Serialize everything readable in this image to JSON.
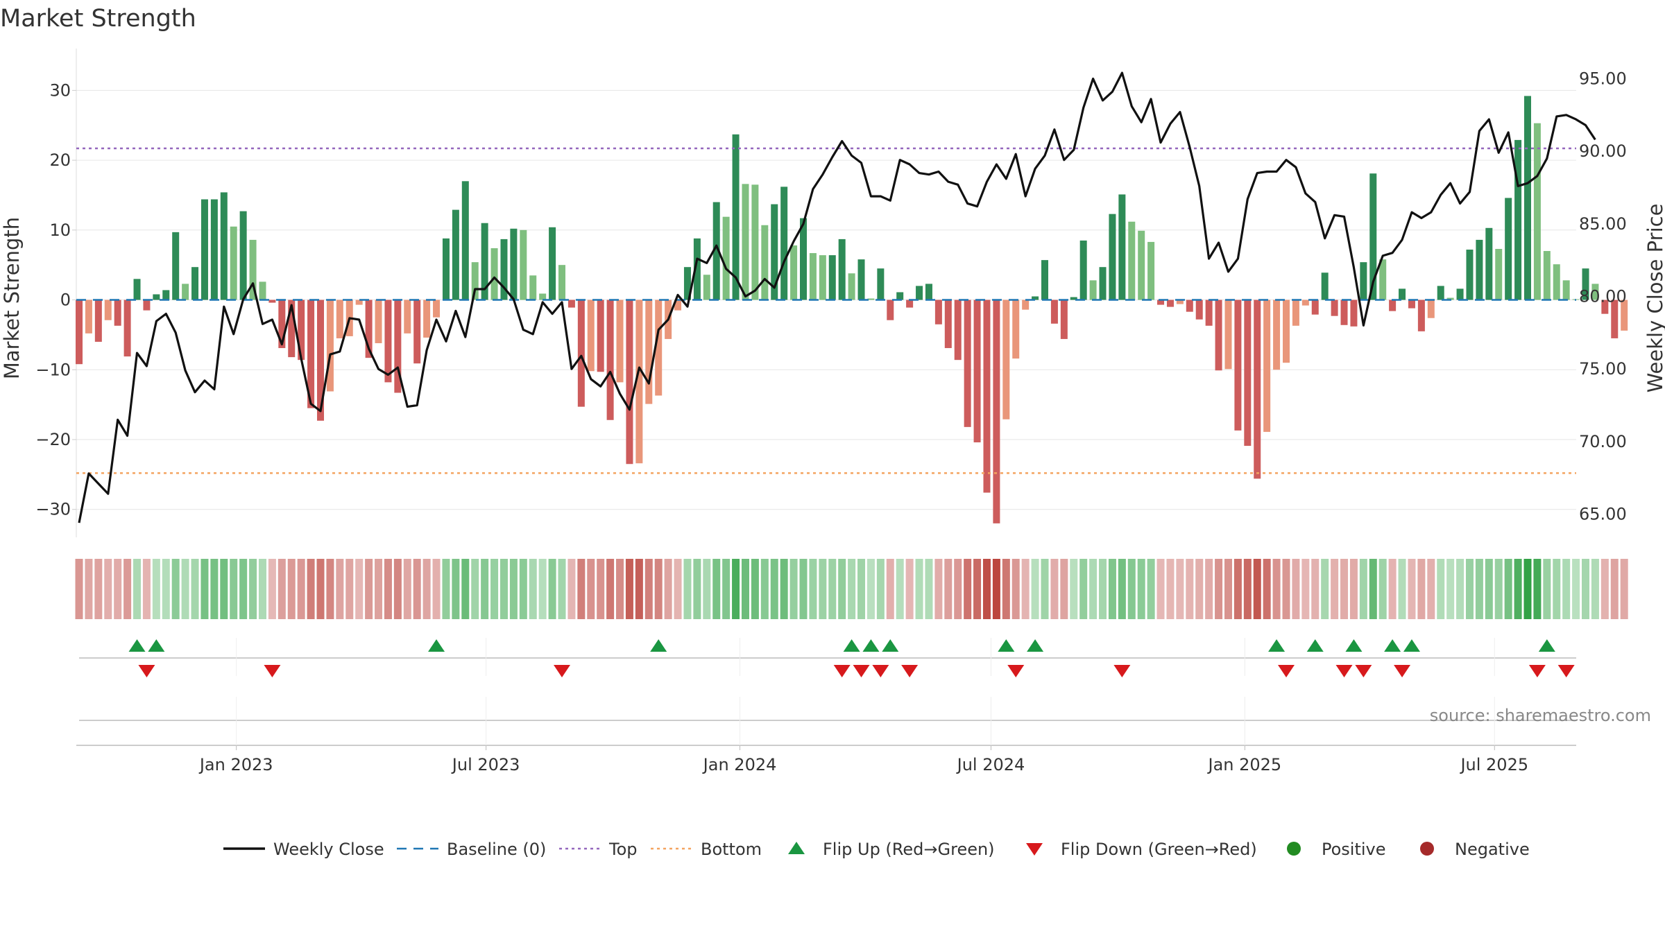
{
  "chart_data": {
    "type": "bar",
    "title": "Market Strength",
    "ylabel": "Market Strength",
    "y2label": "Weekly Close Price",
    "ylim": [
      -34,
      35
    ],
    "y2lim": [
      63.4,
      96.6
    ],
    "yticks": [
      30,
      20,
      10,
      0,
      -10,
      -20,
      -30
    ],
    "yticks_labels": [
      "30",
      "20",
      "10",
      "0",
      "−10",
      "−20",
      "−30"
    ],
    "y2ticks": [
      95,
      90,
      85,
      80,
      75,
      70,
      65
    ],
    "y2ticks_labels": [
      "95.00",
      "90.00",
      "85.00",
      "80.00",
      "75.00",
      "70.00",
      "65.00"
    ],
    "top_line": 21.7,
    "bottom_line": -24.8,
    "baseline": 0,
    "x_start": "2022-09-09",
    "x_step_days": 7,
    "x_ticks": [
      {
        "date": "2023-01-01",
        "label": "Jan 2023"
      },
      {
        "date": "2023-07-01",
        "label": "Jul 2023"
      },
      {
        "date": "2024-01-01",
        "label": "Jan 2024"
      },
      {
        "date": "2024-07-01",
        "label": "Jul 2024"
      },
      {
        "date": "2025-01-01",
        "label": "Jan 2025"
      },
      {
        "date": "2025-07-01",
        "label": "Jul 2025"
      }
    ],
    "series": [
      {
        "name": "Market Strength",
        "values": [
          -9.2,
          -4.8,
          -6,
          -2.9,
          -3.7,
          -8.1,
          3,
          -1.5,
          0.8,
          1.4,
          9.7,
          2.3,
          4.7,
          14.4,
          14.4,
          15.4,
          10.5,
          12.7,
          8.6,
          2.6,
          -0.4,
          -6.9,
          -8.2,
          -8.6,
          -15.5,
          -17.3,
          -13.1,
          -5.5,
          -5.2,
          -0.7,
          -8.3,
          -6.2,
          -11.8,
          -13.3,
          -4.8,
          -9.1,
          -5.4,
          -2.5,
          8.8,
          12.9,
          17,
          5.4,
          11,
          7.4,
          8.7,
          10.2,
          10,
          3.5,
          0.9,
          10.4,
          5,
          -1.1,
          -15.3,
          -10.2,
          -10.3,
          -17.2,
          -11.8,
          -23.5,
          -23.4,
          -14.9,
          -13.7,
          -5.6,
          -1.5,
          4.7,
          8.8,
          3.6,
          14,
          11.9,
          23.7,
          16.6,
          16.5,
          10.7,
          13.7,
          16.2,
          7.8,
          11.7,
          6.7,
          6.4,
          6.4,
          8.7,
          3.8,
          5.8,
          0.2,
          4.5,
          -2.9,
          1.1,
          -1.1,
          2,
          2.3,
          -3.5,
          -6.9,
          -8.6,
          -18.2,
          -20.4,
          -27.6,
          -32,
          -17.1,
          -8.4,
          -1.4,
          0.5,
          5.7,
          -3.4,
          -5.6,
          0.4,
          8.5,
          2.8,
          4.7,
          12.3,
          15.1,
          11.2,
          9.9,
          8.3,
          -0.7,
          -1,
          -0.6,
          -1.7,
          -2.8,
          -3.7,
          -10.1,
          -9.9,
          -18.7,
          -20.9,
          -25.6,
          -18.9,
          -10,
          -9,
          -3.7,
          -0.8,
          -2.1,
          3.9,
          -2.3,
          -3.6,
          -3.8,
          5.4,
          18.1,
          5.8,
          -1.6,
          1.6,
          -1.2,
          -4.5,
          -2.6,
          2,
          0.3,
          1.6,
          7.2,
          8.6,
          10.3,
          7.3,
          14.6,
          22.9,
          29.2,
          25.3,
          7,
          5.1,
          2.8,
          0.1,
          4.5,
          2.3,
          -2,
          -5.5,
          -4.4
        ]
      },
      {
        "name": "Weekly Close",
        "values": [
          64.4,
          67.8,
          67.1,
          66.4,
          71.5,
          70.4,
          76.1,
          75.2,
          78.3,
          78.8,
          77.5,
          74.9,
          73.4,
          74.2,
          73.6,
          79.3,
          77.4,
          79.8,
          80.9,
          78.1,
          78.4,
          76.7,
          79.4,
          75.7,
          72.6,
          72.1,
          76,
          76.2,
          78.5,
          78.4,
          76.4,
          75,
          74.6,
          75.1,
          72.4,
          72.5,
          76.3,
          78.4,
          76.9,
          79,
          77.2,
          80.5,
          80.5,
          81.3,
          80.6,
          79.8,
          77.7,
          77.4,
          79.6,
          78.8,
          79.6,
          75,
          75.9,
          74.3,
          73.8,
          74.8,
          73.3,
          72.2,
          75.1,
          74,
          77.7,
          78.4,
          80.1,
          79.3,
          82.6,
          82.3,
          83.5,
          81.9,
          81.3,
          80,
          80.4,
          81.2,
          80.6,
          82.4,
          83.8,
          85,
          87.4,
          88.4,
          89.6,
          90.7,
          89.7,
          89.2,
          86.9,
          86.9,
          86.6,
          89.4,
          89.1,
          88.5,
          88.4,
          88.6,
          87.9,
          87.7,
          86.4,
          86.2,
          87.9,
          89.1,
          88.1,
          89.8,
          86.9,
          88.8,
          89.7,
          91.5,
          89.4,
          90.1,
          93,
          95,
          93.5,
          94.1,
          95.4,
          93.1,
          92,
          93.6,
          90.6,
          91.9,
          92.7,
          90.3,
          87.6,
          82.6,
          83.7,
          81.7,
          82.6,
          86.7,
          88.5,
          88.6,
          88.6,
          89.4,
          88.9,
          87.1,
          86.5,
          84,
          85.6,
          85.5,
          82,
          78,
          81,
          82.8,
          83,
          83.9,
          85.8,
          85.4,
          85.8,
          87,
          87.8,
          86.4,
          87.2,
          91.4,
          92.2,
          89.9,
          91.3,
          87.6,
          87.8,
          88.3,
          89.5,
          92.4,
          92.5,
          92.2,
          91.8,
          90.8
        ]
      }
    ],
    "flip_up_weeks": [
      6,
      8,
      37,
      60,
      80,
      82,
      84,
      96,
      99,
      124,
      128,
      132,
      136,
      138,
      152
    ],
    "flip_down_weeks": [
      7,
      20,
      50,
      79,
      81,
      83,
      86,
      97,
      108,
      125,
      131,
      133,
      137,
      151,
      154
    ],
    "legend": [
      {
        "label": "Weekly Close",
        "symbol": "solid-line",
        "color": "#111111"
      },
      {
        "label": "Baseline (0)",
        "symbol": "dashed-line",
        "color": "#1f77b4"
      },
      {
        "label": "Top",
        "symbol": "dotted-line",
        "color": "#9467bd"
      },
      {
        "label": "Bottom",
        "symbol": "dotted-line",
        "color": "#f4a460"
      },
      {
        "label": "Flip Up (Red→Green)",
        "symbol": "triangle-up",
        "color": "#1a9641"
      },
      {
        "label": "Flip Down (Green→Red)",
        "symbol": "triangle-down",
        "color": "#d7191c"
      },
      {
        "label": "Positive",
        "symbol": "circle",
        "color": "#228b22"
      },
      {
        "label": "Negative",
        "symbol": "circle",
        "color": "#a52a2a"
      }
    ],
    "source": "source: sharemaestro.com"
  },
  "colors": {
    "positive_dark": "#2e8b57",
    "positive_light": "#7fbf7f",
    "negative_dark": "#cd5c5c",
    "negative_light": "#e9967a",
    "close_line": "#111111",
    "baseline": "#1f77b4",
    "top": "#9467bd",
    "bottom": "#f4a460",
    "flip_up": "#1a9641",
    "flip_down": "#d7191c"
  }
}
